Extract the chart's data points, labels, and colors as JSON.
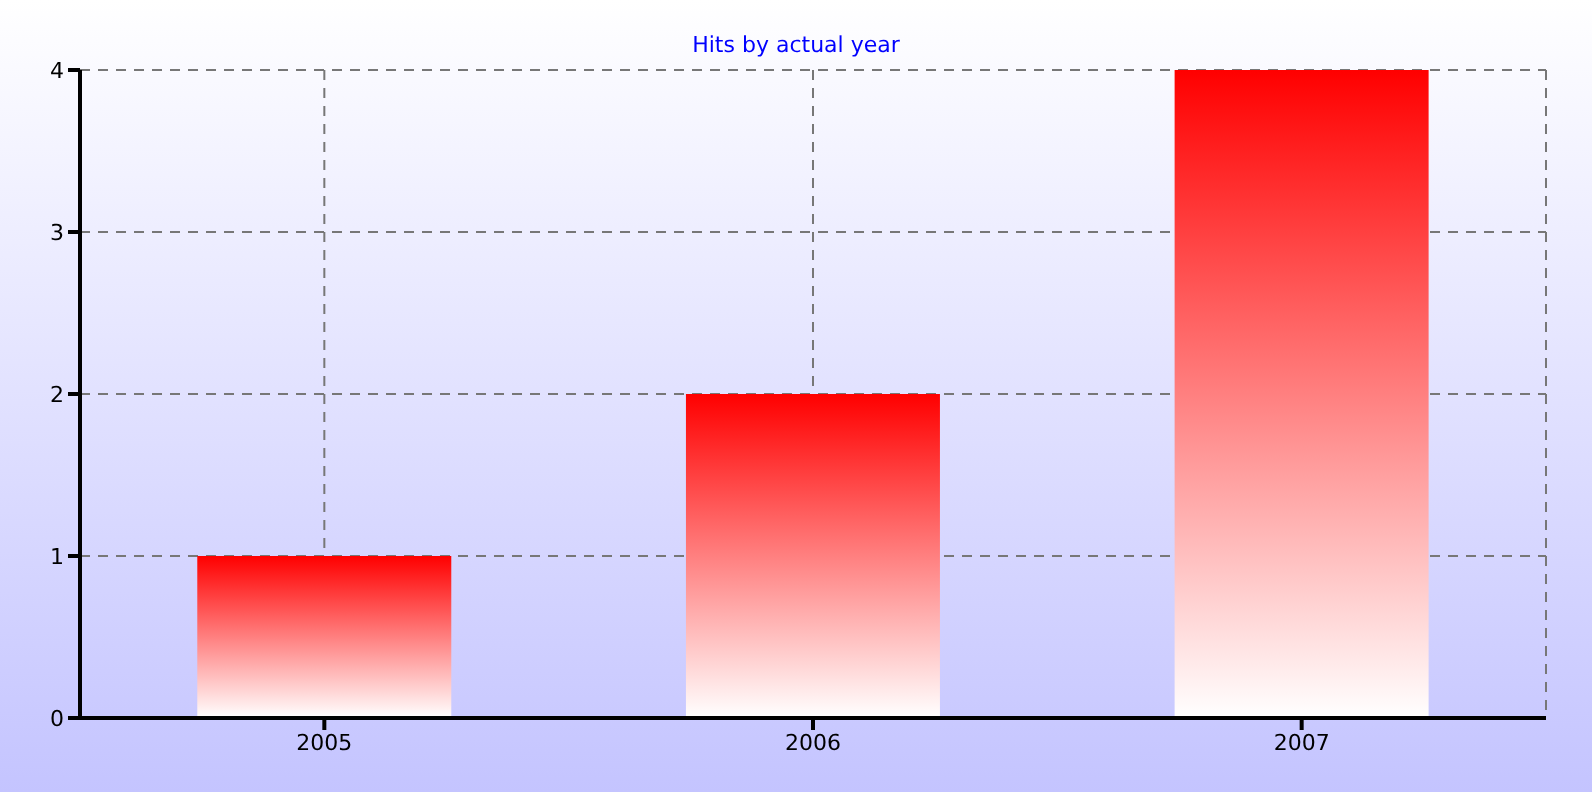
{
  "chart_data": {
    "type": "bar",
    "title": "Hits by actual year",
    "categories": [
      "2005",
      "2006",
      "2007"
    ],
    "values": [
      1,
      2,
      4
    ],
    "color": "#ff0000",
    "ylim": [
      0,
      4
    ],
    "yticks": [
      0,
      1,
      2,
      3,
      4
    ],
    "grid": true
  }
}
